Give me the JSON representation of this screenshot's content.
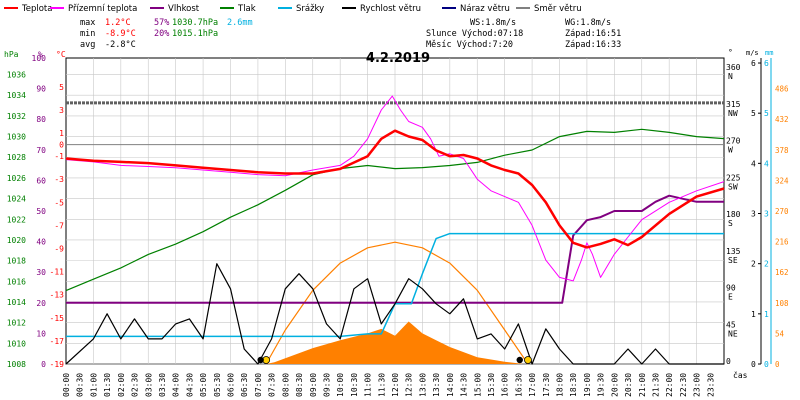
{
  "chart_data": {
    "type": "line",
    "title": "4.2.2019",
    "legend": [
      {
        "label": "Teplota",
        "color": "#ff0000"
      },
      {
        "label": "Přízemní teplota",
        "color": "#ff00ff"
      },
      {
        "label": "Vlhkost",
        "color": "#800080"
      },
      {
        "label": "Tlak",
        "color": "#008000"
      },
      {
        "label": "Srážky",
        "color": "#00b0e0"
      },
      {
        "label": "Rychlost větru",
        "color": "#000000"
      },
      {
        "label": "Náraz větru",
        "color": "#000080"
      },
      {
        "label": "Směr větru",
        "color": "#808080"
      }
    ],
    "summary": {
      "max": {
        "label": "max",
        "temp": "1.2°C",
        "hum": "57%",
        "press": "1030.7hPa",
        "rain": "2.6mm"
      },
      "min": {
        "label": "min",
        "temp": "-8.9°C",
        "hum": "20%",
        "press": "1015.1hPa"
      },
      "avg": {
        "label": "avg",
        "temp": "-2.8°C"
      }
    },
    "wind_info": {
      "ws": "WS:1.8m/s",
      "wg": "WG:1.8m/s",
      "sun": "Slunce Východ:07:18",
      "sun_set": "Západ:16:51",
      "moon": "Měsíc  Východ:7:20",
      "moon_set": "Západ:16:33"
    },
    "axes": {
      "hpa": {
        "unit": "hPa",
        "color": "#008000",
        "ticks": [
          "1036",
          "1034",
          "1032",
          "1030",
          "1028",
          "1026",
          "1024",
          "1022",
          "1020",
          "1018",
          "1016",
          "1014",
          "1012",
          "1010",
          "1008"
        ],
        "range": [
          1008,
          1037.6
        ]
      },
      "pct": {
        "unit": "%",
        "color": "#800080",
        "ticks": [
          "100",
          "90",
          "80",
          "70",
          "60",
          "50",
          "40",
          "30",
          "20",
          "10",
          "0"
        ],
        "range": [
          0,
          100
        ]
      },
      "temp": {
        "unit": "°C",
        "color": "#ff0000",
        "ticks": [
          "5",
          "3",
          "1",
          "0",
          "-1",
          "-3",
          "-5",
          "-7",
          "-9",
          "-11",
          "-13",
          "-15",
          "-17",
          "-19"
        ],
        "range": [
          -19,
          7.5
        ]
      },
      "dir": {
        "unit": "°",
        "ticks": [
          "360",
          "315",
          "270",
          "225",
          "180",
          "135",
          "90",
          "45",
          "0"
        ],
        "names": [
          "N",
          "NW",
          "W",
          "SW",
          "S",
          "SE",
          "E",
          "NE",
          ""
        ],
        "range": [
          0,
          375
        ]
      },
      "ms": {
        "unit": "m/s",
        "ticks": [
          "6",
          "5",
          "4",
          "3",
          "2",
          "1",
          "0"
        ],
        "range": [
          0,
          6.1
        ]
      },
      "mm": {
        "unit": "mm",
        "color": "#00b0e0",
        "ticks": [
          "6",
          "5",
          "4",
          "3",
          "2",
          "1",
          "0"
        ],
        "range": [
          0,
          6.1
        ]
      },
      "rad": {
        "color": "#ff8000",
        "ticks": [
          "486",
          "432",
          "378",
          "324",
          "270",
          "216",
          "162",
          "108",
          "54",
          "0"
        ],
        "range": [
          0,
          540
        ]
      },
      "time_ticks": [
        "00:00",
        "00:30",
        "01:00",
        "01:30",
        "02:00",
        "02:30",
        "03:00",
        "03:30",
        "04:00",
        "04:30",
        "05:00",
        "05:30",
        "06:00",
        "06:30",
        "07:00",
        "07:30",
        "08:00",
        "08:30",
        "09:00",
        "09:30",
        "10:00",
        "10:30",
        "11:00",
        "11:30",
        "12:00",
        "12:30",
        "13:00",
        "13:30",
        "14:00",
        "14:30",
        "15:00",
        "15:30",
        "16:00",
        "16:30",
        "17:00",
        "17:30",
        "18:00",
        "18:30",
        "19:00",
        "19:30",
        "20:00",
        "20:30",
        "21:00",
        "21:30",
        "22:00",
        "22:30",
        "23:00",
        "23:30"
      ],
      "time_label": "čas"
    },
    "series": {
      "temperature": [
        [
          0,
          -1.2
        ],
        [
          1,
          -1.4
        ],
        [
          2,
          -1.5
        ],
        [
          3,
          -1.6
        ],
        [
          4,
          -1.8
        ],
        [
          5,
          -2.0
        ],
        [
          6,
          -2.2
        ],
        [
          7,
          -2.4
        ],
        [
          8,
          -2.5
        ],
        [
          9,
          -2.5
        ],
        [
          10,
          -2.1
        ],
        [
          11,
          -1.0
        ],
        [
          11.5,
          0.5
        ],
        [
          12,
          1.2
        ],
        [
          12.5,
          0.7
        ],
        [
          13,
          0.4
        ],
        [
          13.5,
          -0.5
        ],
        [
          14,
          -1.0
        ],
        [
          14.5,
          -0.9
        ],
        [
          15,
          -1.2
        ],
        [
          15.5,
          -1.8
        ],
        [
          16,
          -2.2
        ],
        [
          16.5,
          -2.5
        ],
        [
          17,
          -3.5
        ],
        [
          17.5,
          -5.0
        ],
        [
          18,
          -7.0
        ],
        [
          18.5,
          -8.5
        ],
        [
          19,
          -8.9
        ],
        [
          19.5,
          -8.6
        ],
        [
          20,
          -8.2
        ],
        [
          20.5,
          -8.7
        ],
        [
          21,
          -8.0
        ],
        [
          22,
          -6.0
        ],
        [
          23,
          -4.5
        ],
        [
          24,
          -3.8
        ]
      ],
      "ground_temperature": [
        [
          0,
          -1.3
        ],
        [
          1,
          -1.5
        ],
        [
          2,
          -1.8
        ],
        [
          3,
          -1.9
        ],
        [
          4,
          -2.0
        ],
        [
          5,
          -2.2
        ],
        [
          6,
          -2.4
        ],
        [
          7,
          -2.6
        ],
        [
          8,
          -2.7
        ],
        [
          9,
          -2.2
        ],
        [
          10,
          -1.8
        ],
        [
          10.5,
          -1.0
        ],
        [
          11,
          0.5
        ],
        [
          11.5,
          3.0
        ],
        [
          11.9,
          4.2
        ],
        [
          12.2,
          3.0
        ],
        [
          12.5,
          2.0
        ],
        [
          13,
          1.5
        ],
        [
          13.3,
          0.5
        ],
        [
          13.6,
          -1.0
        ],
        [
          14,
          -0.8
        ],
        [
          14.5,
          -1.2
        ],
        [
          15,
          -3.0
        ],
        [
          15.5,
          -4.0
        ],
        [
          16,
          -4.5
        ],
        [
          16.5,
          -5.0
        ],
        [
          17,
          -7.0
        ],
        [
          17.5,
          -10.0
        ],
        [
          18,
          -11.5
        ],
        [
          18.5,
          -11.8
        ],
        [
          18.8,
          -10.0
        ],
        [
          19,
          -8.5
        ],
        [
          19.2,
          -9.5
        ],
        [
          19.5,
          -11.5
        ],
        [
          20,
          -9.5
        ],
        [
          20.5,
          -8.0
        ],
        [
          21,
          -6.5
        ],
        [
          22,
          -5.0
        ],
        [
          23,
          -4.0
        ],
        [
          24,
          -3.2
        ]
      ],
      "humidity": [
        [
          0,
          20
        ],
        [
          18.1,
          20
        ],
        [
          18.5,
          42
        ],
        [
          19,
          47
        ],
        [
          19.5,
          48
        ],
        [
          20,
          50
        ],
        [
          21,
          50
        ],
        [
          21.5,
          53
        ],
        [
          22,
          55
        ],
        [
          22.5,
          54
        ],
        [
          23,
          53
        ],
        [
          24,
          53
        ]
      ],
      "pressure": [
        [
          0,
          1015.1
        ],
        [
          1,
          1016.2
        ],
        [
          2,
          1017.3
        ],
        [
          3,
          1018.6
        ],
        [
          4,
          1019.6
        ],
        [
          5,
          1020.8
        ],
        [
          6,
          1022.2
        ],
        [
          7,
          1023.4
        ],
        [
          8,
          1024.8
        ],
        [
          9,
          1026.3
        ],
        [
          10,
          1026.9
        ],
        [
          11,
          1027.2
        ],
        [
          12,
          1026.9
        ],
        [
          13,
          1027.0
        ],
        [
          14,
          1027.2
        ],
        [
          15,
          1027.5
        ],
        [
          16,
          1028.2
        ],
        [
          17,
          1028.7
        ],
        [
          18,
          1030.0
        ],
        [
          19,
          1030.5
        ],
        [
          20,
          1030.4
        ],
        [
          21,
          1030.7
        ],
        [
          22,
          1030.4
        ],
        [
          23,
          1030.0
        ],
        [
          24,
          1029.8
        ]
      ],
      "precipitation": [
        [
          0,
          0.55
        ],
        [
          10,
          0.55
        ],
        [
          11,
          0.6
        ],
        [
          11.5,
          0.6
        ],
        [
          12,
          1.2
        ],
        [
          12.6,
          1.2
        ],
        [
          13,
          1.8
        ],
        [
          13.5,
          2.5
        ],
        [
          14,
          2.6
        ],
        [
          24,
          2.6
        ]
      ],
      "wind_speed": [
        [
          0,
          0
        ],
        [
          1,
          0.5
        ],
        [
          1.5,
          1.0
        ],
        [
          2,
          0.5
        ],
        [
          2.5,
          0.9
        ],
        [
          3,
          0.5
        ],
        [
          3.5,
          0.5
        ],
        [
          4,
          0.8
        ],
        [
          4.5,
          0.9
        ],
        [
          5,
          0.5
        ],
        [
          5.5,
          2.0
        ],
        [
          6,
          1.5
        ],
        [
          6.5,
          0.3
        ],
        [
          7,
          0
        ],
        [
          7.5,
          0.5
        ],
        [
          8,
          1.5
        ],
        [
          8.5,
          1.8
        ],
        [
          9,
          1.5
        ],
        [
          9.5,
          0.8
        ],
        [
          10,
          0.5
        ],
        [
          10.5,
          1.5
        ],
        [
          11,
          1.7
        ],
        [
          11.5,
          0.8
        ],
        [
          12,
          1.2
        ],
        [
          12.5,
          1.7
        ],
        [
          13,
          1.5
        ],
        [
          13.5,
          1.2
        ],
        [
          14,
          1.0
        ],
        [
          14.5,
          1.3
        ],
        [
          15,
          0.5
        ],
        [
          15.5,
          0.6
        ],
        [
          16,
          0.3
        ],
        [
          16.5,
          0.8
        ],
        [
          17,
          0
        ],
        [
          17.5,
          0.7
        ],
        [
          18,
          0.3
        ],
        [
          18.5,
          0
        ],
        [
          20,
          0
        ],
        [
          20.5,
          0.3
        ],
        [
          21,
          0
        ],
        [
          21.5,
          0.3
        ],
        [
          22,
          0
        ],
        [
          24,
          0
        ]
      ],
      "wind_direction": [
        [
          0,
          320
        ],
        [
          24,
          320
        ]
      ],
      "solar": [
        [
          7.3,
          0
        ],
        [
          7.6,
          3
        ],
        [
          8,
          10
        ],
        [
          9,
          28
        ],
        [
          10,
          42
        ],
        [
          11,
          54
        ],
        [
          11.5,
          62
        ],
        [
          12,
          50
        ],
        [
          12.5,
          75
        ],
        [
          13,
          54
        ],
        [
          13.5,
          42
        ],
        [
          14,
          30
        ],
        [
          15,
          12
        ],
        [
          16,
          4
        ],
        [
          16.7,
          0
        ]
      ],
      "sun_path": [
        [
          7.3,
          0
        ],
        [
          8,
          60
        ],
        [
          9,
          130
        ],
        [
          10,
          178
        ],
        [
          11,
          205
        ],
        [
          12,
          215
        ],
        [
          13,
          205
        ],
        [
          14,
          178
        ],
        [
          15,
          130
        ],
        [
          16,
          60
        ],
        [
          16.85,
          0
        ]
      ]
    }
  }
}
